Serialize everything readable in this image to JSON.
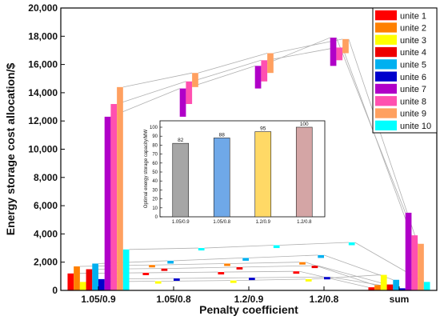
{
  "chart_data": [
    {
      "type": "bar",
      "xlabel": "Penalty coefficient",
      "ylabel": "Energy storage cost allocation/$",
      "ylim": [
        0,
        20000
      ],
      "yticks": [
        0,
        2000,
        4000,
        6000,
        8000,
        10000,
        12000,
        14000,
        16000,
        18000,
        20000
      ],
      "ytick_labels": [
        "0",
        "2,000",
        "4,000",
        "6,000",
        "8,000",
        "10,000",
        "12,000",
        "14,000",
        "16,000",
        "18,000",
        "20,000"
      ],
      "categories": [
        "1.05/0.9",
        "1.05/0.8",
        "1.2/0.9",
        "1.2/0.8",
        "sum"
      ],
      "legend_position": "top-right",
      "series": [
        {
          "name": "unite 1",
          "color": "#ff0000",
          "values": [
            1200,
            1250,
            1300,
            1350,
            220
          ]
        },
        {
          "name": "unite 2",
          "color": "#ff8000",
          "values": [
            1700,
            1800,
            1900,
            2000,
            380
          ]
        },
        {
          "name": "unite 3",
          "color": "#ffff00",
          "values": [
            600,
            650,
            700,
            800,
            1100
          ]
        },
        {
          "name": "unite 4",
          "color": "#ee0000",
          "values": [
            1500,
            1550,
            1650,
            1750,
            420
          ]
        },
        {
          "name": "unite 5",
          "color": "#00b0f0",
          "values": [
            1900,
            2100,
            2300,
            2500,
            750
          ]
        },
        {
          "name": "unite 6",
          "color": "#0000cc",
          "values": [
            800,
            850,
            900,
            950,
            150
          ]
        },
        {
          "name": "unite 7",
          "color": "#b000c8",
          "values": [
            12300,
            14300,
            15900,
            17900,
            5500
          ]
        },
        {
          "name": "unite 8",
          "color": "#ff50b0",
          "values": [
            13200,
            14800,
            16300,
            17200,
            3900
          ]
        },
        {
          "name": "unite 9",
          "color": "#ffa060",
          "values": [
            14400,
            15400,
            16800,
            17800,
            3300
          ]
        },
        {
          "name": "unite 10",
          "color": "#00ffff",
          "values": [
            2900,
            3000,
            3200,
            3400,
            600
          ]
        }
      ]
    },
    {
      "type": "bar",
      "ylabel": "Optimal energy storage capacity/MW",
      "ylim": [
        0,
        100
      ],
      "yticks": [
        0,
        10,
        20,
        30,
        40,
        50,
        60,
        70,
        80,
        90,
        100
      ],
      "categories": [
        "1.05/0.9",
        "1.05/0.8",
        "1.2/0.9",
        "1.2/0.8"
      ],
      "values": [
        82,
        88,
        95,
        100
      ],
      "colors": [
        "#a6a6a6",
        "#6fa8e8",
        "#ffd966",
        "#d4a5a5"
      ]
    }
  ]
}
